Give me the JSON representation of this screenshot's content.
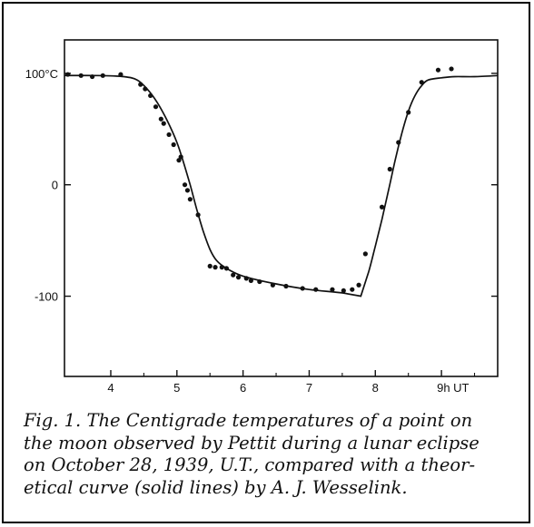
{
  "chart_data": {
    "type": "scatter",
    "xlabel": "",
    "ylabel": "",
    "xlim": [
      3.3,
      9.85
    ],
    "ylim": [
      -172,
      130
    ],
    "x_ticks": [
      {
        "value": 4,
        "label": "4"
      },
      {
        "value": 5,
        "label": "5"
      },
      {
        "value": 6,
        "label": "6"
      },
      {
        "value": 7,
        "label": "7"
      },
      {
        "value": 8,
        "label": "8"
      },
      {
        "value": 9,
        "label": "9h UT"
      }
    ],
    "y_ticks": [
      {
        "value": 100,
        "label": "100°C"
      },
      {
        "value": 0,
        "label": "0"
      },
      {
        "value": -100,
        "label": "-100"
      }
    ],
    "series": [
      {
        "kind": "points",
        "x": [
          3.35,
          3.55,
          3.72,
          3.88,
          4.15,
          4.45,
          4.52,
          4.6,
          4.68,
          4.76,
          4.8,
          4.88,
          4.95,
          5.03,
          5.06,
          5.12,
          5.16,
          5.2,
          5.32,
          5.5,
          5.58,
          5.68,
          5.75,
          5.85,
          5.93,
          6.05,
          6.12,
          6.25,
          6.45,
          6.65,
          6.9,
          7.1,
          7.35,
          7.52,
          7.65,
          7.75,
          7.85,
          8.1,
          8.22,
          8.35,
          8.5,
          8.7,
          8.95,
          9.15
        ],
        "y": [
          99,
          98,
          97,
          98,
          99,
          90,
          86,
          80,
          70,
          59,
          55,
          45,
          36,
          22,
          25,
          0,
          -5,
          -13,
          -27,
          -73,
          -74,
          -74,
          -75,
          -81,
          -83,
          -84,
          -86,
          -87,
          -90,
          -91,
          -93,
          -94,
          -94,
          -95,
          -94,
          -90,
          -62,
          -20,
          14,
          38,
          65,
          92,
          103,
          104
        ]
      },
      {
        "kind": "curve",
        "x": [
          3.3,
          3.8,
          4.2,
          4.4,
          4.55,
          4.7,
          4.85,
          5.0,
          5.1,
          5.2,
          5.3,
          5.4,
          5.5,
          5.6,
          5.75,
          6.0,
          6.5,
          7.0,
          7.5,
          7.78,
          7.9,
          8.0,
          8.1,
          8.2,
          8.3,
          8.4,
          8.5,
          8.6,
          8.7,
          8.8,
          9.0,
          9.2,
          9.5,
          9.85
        ],
        "y": [
          98,
          98,
          97,
          94,
          86,
          74,
          58,
          38,
          20,
          0,
          -22,
          -42,
          -58,
          -68,
          -75,
          -82,
          -89,
          -94,
          -97,
          -100,
          -78,
          -55,
          -31,
          -5,
          22,
          46,
          66,
          80,
          89,
          94,
          96,
          97,
          97,
          98
        ]
      }
    ]
  },
  "caption": [
    "Fig. 1. The Centigrade temperatures of a point on",
    "the moon observed by Pettit during a lunar eclipse",
    "on October 28, 1939, U.T., compared with a theor-",
    "etical curve (solid lines) by A. J. Wesselink."
  ]
}
